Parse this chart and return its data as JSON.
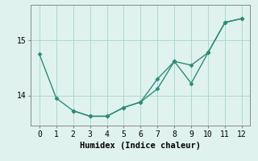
{
  "series1_x": [
    0,
    1,
    2,
    3,
    4,
    5,
    6,
    7,
    8,
    9,
    10,
    11,
    12
  ],
  "series1_y": [
    14.75,
    13.95,
    13.72,
    13.62,
    13.62,
    13.78,
    13.88,
    14.12,
    14.62,
    14.22,
    14.78,
    15.33,
    15.4
  ],
  "series2_x": [
    2,
    3,
    4,
    5,
    6,
    7,
    8,
    9,
    10,
    11,
    12
  ],
  "series2_y": [
    13.72,
    13.62,
    13.62,
    13.78,
    13.88,
    14.3,
    14.62,
    14.55,
    14.78,
    15.33,
    15.4
  ],
  "line_color": "#2e8b7a",
  "marker": "D",
  "markersize": 2.5,
  "linewidth": 1.0,
  "bg_color": "#dff2ee",
  "grid_color": "#aed8d0",
  "xlabel": "Humidex (Indice chaleur)",
  "xlabel_fontsize": 7.5,
  "xlim": [
    -0.5,
    12.5
  ],
  "ylim": [
    13.45,
    15.65
  ],
  "yticks": [
    14,
    15
  ],
  "xticks": [
    0,
    1,
    2,
    3,
    4,
    5,
    6,
    7,
    8,
    9,
    10,
    11,
    12
  ],
  "tick_fontsize": 7
}
